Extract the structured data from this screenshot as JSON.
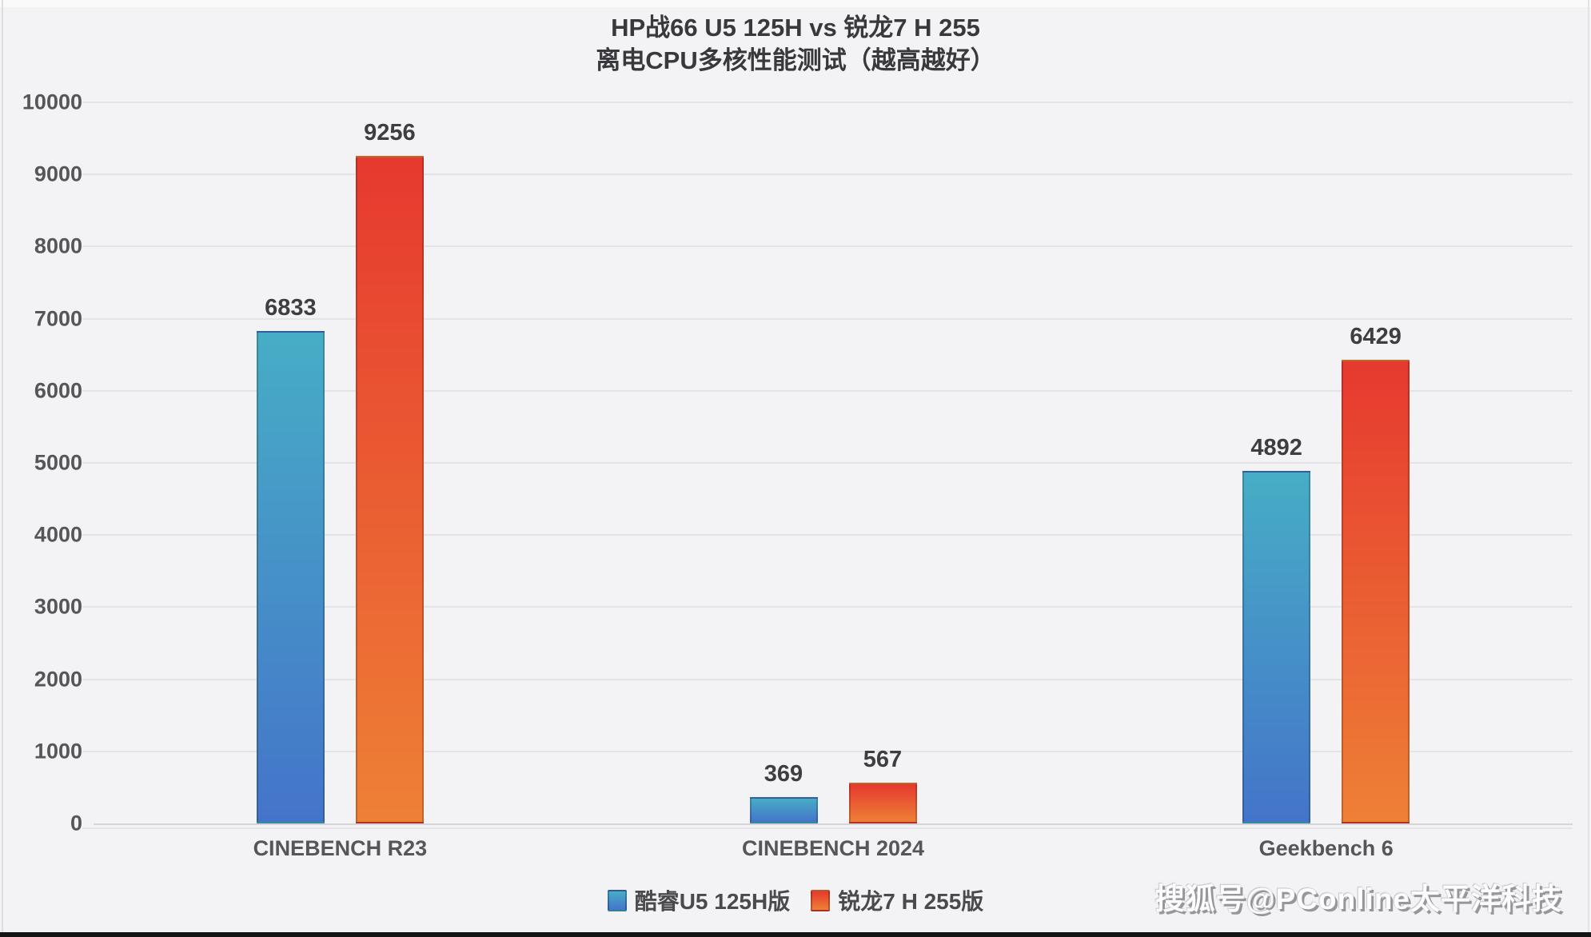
{
  "title": {
    "line1": "HP战66 U5 125H vs 锐龙7 H 255",
    "line2": "离电CPU多核性能测试（越高越好）"
  },
  "watermark": "搜狐号@PConline太平洋科技",
  "chart_data": {
    "type": "bar",
    "title": "HP战66 U5 125H vs 锐龙7 H 255 离电CPU多核性能测试（越高越好）",
    "categories": [
      "CINEBENCH R23",
      "CINEBENCH 2024",
      "Geekbench 6"
    ],
    "series": [
      {
        "name": "酷睿U5 125H版",
        "values": [
          6833,
          369,
          4892
        ],
        "color_top": "#47ADC6",
        "color_bottom": "#4474C9"
      },
      {
        "name": "锐龙7 H 255版",
        "values": [
          9256,
          567,
          6429
        ],
        "color_top": "#E6392F",
        "color_bottom": "#EE8036"
      }
    ],
    "xlabel": "",
    "ylabel": "",
    "ylim": [
      0,
      10000
    ],
    "ytick_interval": 1000,
    "grid": true,
    "legend_position": "bottom",
    "data_labels": true
  }
}
